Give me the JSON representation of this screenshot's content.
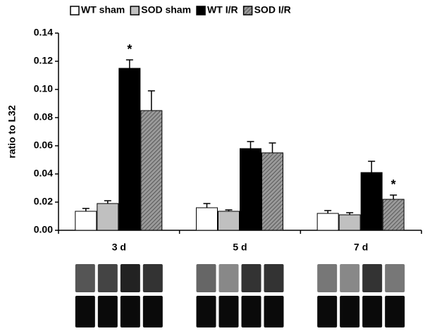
{
  "chart_data": {
    "type": "bar",
    "y_label": "ratio to L32",
    "categories": [
      "3 d",
      "5 d",
      "7 d"
    ],
    "series": [
      {
        "name": "WT sham",
        "color": "#ffffff",
        "values": [
          0.0135,
          0.016,
          0.012
        ],
        "errors": [
          0.002,
          0.003,
          0.002
        ]
      },
      {
        "name": "SOD sham",
        "color": "#c0c0c0",
        "values": [
          0.019,
          0.0135,
          0.011
        ],
        "errors": [
          0.002,
          0.001,
          0.0015
        ]
      },
      {
        "name": "WT I/R",
        "color": "#000000",
        "values": [
          0.115,
          0.058,
          0.041
        ],
        "errors": [
          0.006,
          0.005,
          0.008
        ]
      },
      {
        "name": "SOD I/R",
        "color": "#8a8a8a",
        "hatch": true,
        "values": [
          0.085,
          0.055,
          0.022
        ],
        "errors": [
          0.014,
          0.007,
          0.003
        ]
      }
    ],
    "annotations": [
      {
        "text": "*"
      },
      {
        "text": "*"
      }
    ],
    "ylim": [
      0,
      0.14
    ],
    "yticks": [
      {
        "value": 0,
        "label": "0.00"
      },
      0.02,
      0.04,
      0.06,
      0.08,
      {
        "value": 0.1,
        "label": "0.10"
      },
      0.12,
      0.14
    ],
    "legend": "top"
  }
}
